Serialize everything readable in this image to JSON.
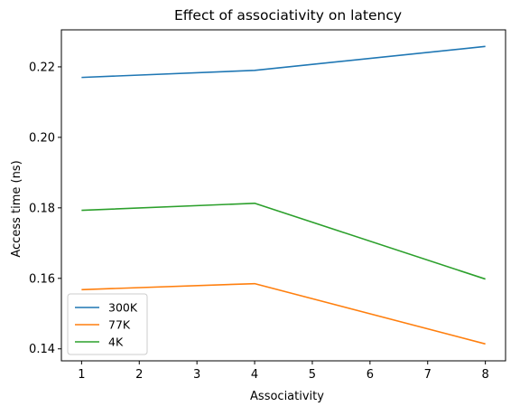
{
  "chart_data": {
    "type": "line",
    "title": "Effect of associativity on latency",
    "xlabel": "Associativity",
    "ylabel": "Access time (ns)",
    "x": [
      1,
      4,
      8
    ],
    "xlim": [
      0.65,
      8.35
    ],
    "ylim": [
      0.1366,
      0.2305
    ],
    "xticks": [
      1,
      2,
      3,
      4,
      5,
      6,
      7,
      8
    ],
    "yticks": [
      0.14,
      0.16,
      0.18,
      0.2,
      0.22
    ],
    "ytick_labels": [
      "0.14",
      "0.16",
      "0.18",
      "0.20",
      "0.22"
    ],
    "grid": false,
    "legend_position": "lower-left",
    "series": [
      {
        "name": "300K",
        "color": "#1f77b4",
        "values": [
          0.217,
          0.219,
          0.2258
        ]
      },
      {
        "name": "77K",
        "color": "#ff7f0e",
        "values": [
          0.1568,
          0.1585,
          0.1414
        ]
      },
      {
        "name": "4K",
        "color": "#2ca02c",
        "values": [
          0.1793,
          0.1813,
          0.1598
        ]
      }
    ]
  }
}
